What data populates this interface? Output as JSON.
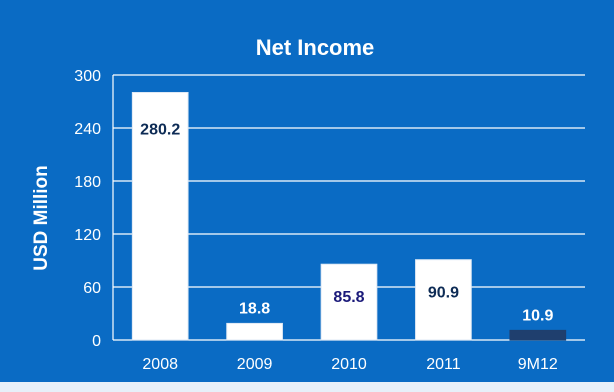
{
  "chart_data": {
    "type": "bar",
    "title": "Net Income",
    "ylabel": "USD Million",
    "xlabel": "",
    "categories": [
      "2008",
      "2009",
      "2010",
      "2011",
      "9M12"
    ],
    "values": [
      280.2,
      18.8,
      85.8,
      90.9,
      10.9
    ],
    "data_labels": [
      "280.2",
      "18.8",
      "85.8",
      "90.9",
      "10.9"
    ],
    "ylim": [
      0,
      300
    ],
    "yticks": [
      0,
      60,
      120,
      180,
      240,
      300
    ],
    "grid": true,
    "legend": "none",
    "colors": {
      "background": "#0a6bc4",
      "bar": "#ffffff",
      "bar_highlight": "#1f3f6e",
      "label_dark": "#0d2b55",
      "label_light": "#ffffff",
      "label_navy": "#1b1a7a"
    }
  }
}
